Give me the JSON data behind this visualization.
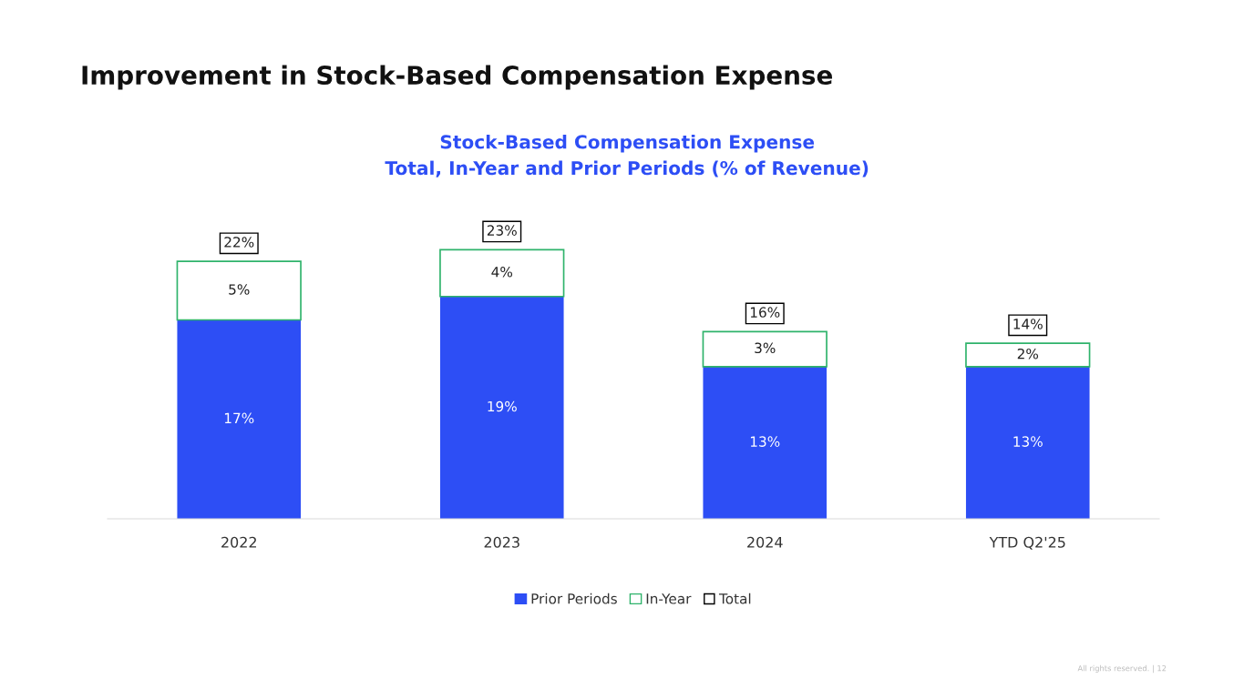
{
  "chart_data": {
    "type": "bar",
    "title": "Improvement in Stock-Based Compensation Expense",
    "subtitle": "Stock-Based Compensation Expense\nTotal, In-Year and Prior Periods (% of Revenue)",
    "categories": [
      "2022",
      "2023",
      "2024",
      "YTD Q2'25"
    ],
    "stacked": true,
    "totals": [
      "22%",
      "23%",
      "16%",
      "14%"
    ],
    "series": [
      {
        "name": "Prior Periods",
        "color": "#2d4ef5",
        "values": [
          17,
          19,
          13,
          13
        ],
        "value_labels": [
          "17%",
          "19%",
          "13%",
          "13%"
        ]
      },
      {
        "name": "In-Year",
        "color": "#2fb36b",
        "values": [
          5,
          4,
          3,
          2
        ],
        "value_labels": [
          "5%",
          "4%",
          "3%",
          "2%"
        ]
      },
      {
        "name": "Total",
        "type": "scatter",
        "color": "#000000",
        "values": [
          null,
          null,
          null,
          null
        ]
      }
    ],
    "legend": "bottom",
    "grid": false,
    "annotations": [
      "All rights reserved. | 12"
    ]
  }
}
